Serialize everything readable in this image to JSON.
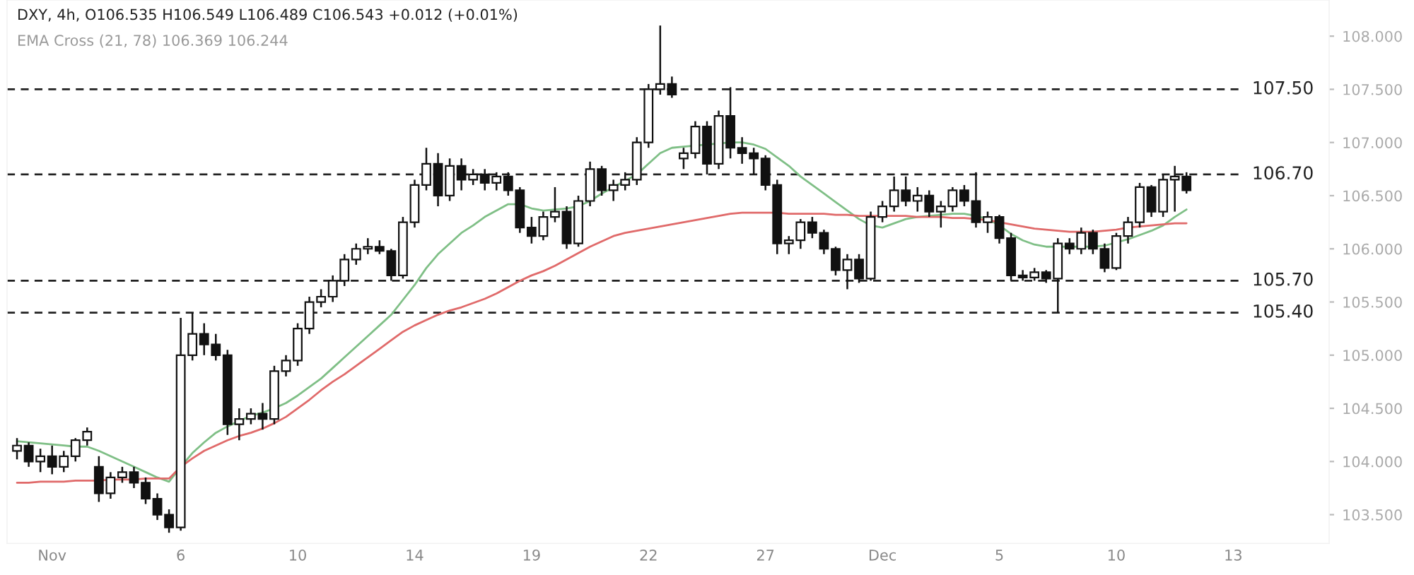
{
  "chart_data": {
    "type": "candlestick",
    "annotations": [
      "DXY, 4h, O106.535 H106.549 L106.489 C106.543 +0.012 (+0.01%)",
      "EMA Cross (21, 78) 106.369 106.244"
    ],
    "categories": [
      null,
      null,
      null,
      "Nov",
      null,
      null,
      null,
      null,
      null,
      null,
      null,
      null,
      null,
      null,
      "6",
      null,
      null,
      null,
      null,
      null,
      null,
      null,
      null,
      null,
      "10",
      null,
      null,
      null,
      null,
      null,
      null,
      null,
      null,
      null,
      "14",
      null,
      null,
      null,
      null,
      null,
      null,
      null,
      null,
      null,
      "19",
      null,
      null,
      null,
      null,
      null,
      null,
      null,
      null,
      null,
      "22",
      null,
      null,
      null,
      null,
      null,
      null,
      null,
      null,
      null,
      "27",
      null,
      null,
      null,
      null,
      null,
      null,
      null,
      null,
      null,
      "Dec",
      null,
      null,
      null,
      null,
      null,
      null,
      null,
      null,
      null,
      "5",
      null,
      null,
      null,
      null,
      null,
      null,
      null,
      null,
      null,
      "10",
      null,
      null,
      null,
      null,
      null,
      null,
      null,
      null,
      null,
      "13"
    ],
    "ohlc": [
      [
        104.1,
        104.22,
        104.02,
        104.15
      ],
      [
        104.15,
        104.18,
        103.95,
        104.0
      ],
      [
        104.0,
        104.12,
        103.9,
        104.05
      ],
      [
        104.05,
        104.15,
        103.88,
        103.95
      ],
      [
        103.95,
        104.1,
        103.9,
        104.05
      ],
      [
        104.05,
        104.22,
        104.0,
        104.2
      ],
      [
        104.2,
        104.32,
        104.15,
        104.28
      ],
      [
        103.95,
        104.05,
        103.62,
        103.7
      ],
      [
        103.7,
        103.9,
        103.65,
        103.85
      ],
      [
        103.85,
        103.95,
        103.8,
        103.9
      ],
      [
        103.9,
        103.95,
        103.75,
        103.8
      ],
      [
        103.8,
        103.85,
        103.6,
        103.65
      ],
      [
        103.65,
        103.7,
        103.45,
        103.5
      ],
      [
        103.5,
        103.55,
        103.33,
        103.38
      ],
      [
        103.38,
        105.35,
        103.35,
        105.0
      ],
      [
        105.0,
        105.4,
        104.95,
        105.2
      ],
      [
        105.2,
        105.3,
        105.0,
        105.1
      ],
      [
        105.1,
        105.2,
        104.95,
        105.0
      ],
      [
        105.0,
        105.05,
        104.25,
        104.35
      ],
      [
        104.35,
        104.5,
        104.2,
        104.4
      ],
      [
        104.4,
        104.5,
        104.35,
        104.45
      ],
      [
        104.45,
        104.55,
        104.3,
        104.4
      ],
      [
        104.4,
        104.9,
        104.35,
        104.85
      ],
      [
        104.85,
        105.0,
        104.8,
        104.95
      ],
      [
        104.95,
        105.3,
        104.9,
        105.25
      ],
      [
        105.25,
        105.55,
        105.2,
        105.5
      ],
      [
        105.5,
        105.62,
        105.45,
        105.55
      ],
      [
        105.55,
        105.75,
        105.5,
        105.7
      ],
      [
        105.7,
        105.95,
        105.65,
        105.9
      ],
      [
        105.9,
        106.05,
        105.85,
        106.0
      ],
      [
        106.0,
        106.1,
        105.95,
        106.02
      ],
      [
        106.02,
        106.08,
        105.95,
        105.98
      ],
      [
        105.98,
        106.0,
        105.7,
        105.75
      ],
      [
        105.75,
        106.3,
        105.72,
        106.25
      ],
      [
        106.25,
        106.65,
        106.2,
        106.6
      ],
      [
        106.6,
        106.95,
        106.55,
        106.8
      ],
      [
        106.8,
        106.9,
        106.4,
        106.5
      ],
      [
        106.5,
        106.85,
        106.45,
        106.78
      ],
      [
        106.78,
        106.85,
        106.55,
        106.65
      ],
      [
        106.65,
        106.75,
        106.6,
        106.7
      ],
      [
        106.7,
        106.75,
        106.55,
        106.62
      ],
      [
        106.62,
        106.72,
        106.55,
        106.68
      ],
      [
        106.68,
        106.72,
        106.5,
        106.55
      ],
      [
        106.55,
        106.58,
        106.15,
        106.2
      ],
      [
        106.2,
        106.3,
        106.05,
        106.12
      ],
      [
        106.12,
        106.35,
        106.08,
        106.3
      ],
      [
        106.3,
        106.58,
        106.25,
        106.35
      ],
      [
        106.35,
        106.4,
        106.0,
        106.05
      ],
      [
        106.05,
        106.5,
        106.02,
        106.45
      ],
      [
        106.45,
        106.82,
        106.4,
        106.75
      ],
      [
        106.75,
        106.78,
        106.5,
        106.55
      ],
      [
        106.55,
        106.65,
        106.45,
        106.6
      ],
      [
        106.6,
        106.72,
        106.55,
        106.65
      ],
      [
        106.65,
        107.05,
        106.6,
        107.0
      ],
      [
        107.0,
        107.55,
        106.95,
        107.5
      ],
      [
        107.5,
        108.1,
        107.45,
        107.55
      ],
      [
        107.55,
        107.62,
        107.42,
        107.45
      ],
      [
        106.85,
        106.95,
        106.75,
        106.9
      ],
      [
        106.9,
        107.2,
        106.85,
        107.15
      ],
      [
        107.15,
        107.2,
        106.7,
        106.8
      ],
      [
        106.8,
        107.3,
        106.75,
        107.25
      ],
      [
        107.25,
        107.52,
        106.85,
        106.95
      ],
      [
        106.95,
        107.05,
        106.8,
        106.9
      ],
      [
        106.9,
        106.95,
        106.7,
        106.85
      ],
      [
        106.85,
        106.88,
        106.55,
        106.6
      ],
      [
        106.6,
        106.65,
        105.95,
        106.05
      ],
      [
        106.05,
        106.12,
        105.95,
        106.08
      ],
      [
        106.08,
        106.28,
        106.0,
        106.25
      ],
      [
        106.25,
        106.3,
        106.1,
        106.15
      ],
      [
        106.15,
        106.18,
        105.95,
        106.0
      ],
      [
        106.0,
        106.02,
        105.75,
        105.8
      ],
      [
        105.8,
        105.95,
        105.62,
        105.9
      ],
      [
        105.9,
        105.95,
        105.68,
        105.72
      ],
      [
        105.72,
        106.35,
        105.7,
        106.3
      ],
      [
        106.3,
        106.45,
        106.25,
        106.4
      ],
      [
        106.4,
        106.68,
        106.35,
        106.55
      ],
      [
        106.55,
        106.68,
        106.4,
        106.45
      ],
      [
        106.45,
        106.58,
        106.35,
        106.5
      ],
      [
        106.5,
        106.55,
        106.3,
        106.35
      ],
      [
        106.35,
        106.45,
        106.2,
        106.4
      ],
      [
        106.4,
        106.58,
        106.35,
        106.55
      ],
      [
        106.55,
        106.6,
        106.4,
        106.45
      ],
      [
        106.45,
        106.72,
        106.2,
        106.25
      ],
      [
        106.25,
        106.35,
        106.15,
        106.3
      ],
      [
        106.3,
        106.32,
        106.05,
        106.1
      ],
      [
        106.1,
        106.15,
        105.7,
        105.75
      ],
      [
        105.75,
        105.8,
        105.7,
        105.73
      ],
      [
        105.73,
        105.82,
        105.7,
        105.78
      ],
      [
        105.78,
        105.8,
        105.68,
        105.72
      ],
      [
        105.72,
        106.1,
        105.4,
        106.05
      ],
      [
        106.05,
        106.1,
        105.95,
        106.0
      ],
      [
        106.0,
        106.2,
        105.95,
        106.15
      ],
      [
        106.15,
        106.18,
        105.95,
        106.0
      ],
      [
        106.0,
        106.05,
        105.78,
        105.82
      ],
      [
        105.82,
        106.15,
        105.8,
        106.12
      ],
      [
        106.12,
        106.3,
        106.05,
        106.25
      ],
      [
        106.25,
        106.62,
        106.2,
        106.58
      ],
      [
        106.58,
        106.6,
        106.3,
        106.35
      ],
      [
        106.35,
        106.7,
        106.3,
        106.65
      ],
      [
        106.65,
        106.78,
        106.35,
        106.68
      ],
      [
        106.68,
        106.72,
        106.52,
        106.55
      ],
      null,
      null,
      null,
      null
    ],
    "series": [
      {
        "type": "line",
        "color": "#7fbf86",
        "values": [
          104.19,
          104.18,
          104.17,
          104.16,
          104.15,
          104.14,
          104.14,
          104.1,
          104.05,
          104.0,
          103.95,
          103.9,
          103.85,
          103.81,
          103.95,
          104.08,
          104.18,
          104.27,
          104.33,
          104.38,
          104.43,
          104.46,
          104.5,
          104.55,
          104.62,
          104.7,
          104.78,
          104.88,
          104.98,
          105.08,
          105.18,
          105.28,
          105.38,
          105.52,
          105.66,
          105.82,
          105.95,
          106.05,
          106.15,
          106.22,
          106.3,
          106.36,
          106.42,
          106.42,
          106.38,
          106.36,
          106.37,
          106.38,
          106.4,
          106.45,
          106.52,
          106.58,
          106.64,
          106.7,
          106.8,
          106.9,
          106.95,
          106.96,
          106.97,
          106.98,
          106.99,
          107.0,
          107.0,
          106.98,
          106.94,
          106.86,
          106.78,
          106.68,
          106.6,
          106.52,
          106.44,
          106.36,
          106.28,
          106.22,
          106.2,
          106.24,
          106.28,
          106.3,
          106.31,
          106.32,
          106.33,
          106.33,
          106.31,
          106.28,
          106.22,
          106.14,
          106.08,
          106.04,
          106.02,
          106.02,
          106.02,
          106.02,
          106.02,
          106.03,
          106.06,
          106.09,
          106.13,
          106.17,
          106.22,
          106.3,
          106.37,
          null,
          null,
          null,
          null
        ]
      },
      {
        "type": "line",
        "color": "#e06a6a",
        "values": [
          103.8,
          103.8,
          103.81,
          103.81,
          103.81,
          103.82,
          103.82,
          103.82,
          103.83,
          103.83,
          103.83,
          103.84,
          103.84,
          103.84,
          103.95,
          104.03,
          104.1,
          104.15,
          104.2,
          104.24,
          104.27,
          104.31,
          104.36,
          104.42,
          104.5,
          104.58,
          104.67,
          104.75,
          104.82,
          104.9,
          104.98,
          105.06,
          105.14,
          105.22,
          105.28,
          105.33,
          105.38,
          105.42,
          105.45,
          105.49,
          105.53,
          105.58,
          105.64,
          105.7,
          105.75,
          105.79,
          105.84,
          105.9,
          105.96,
          106.02,
          106.07,
          106.12,
          106.15,
          106.17,
          106.19,
          106.21,
          106.23,
          106.25,
          106.27,
          106.29,
          106.31,
          106.33,
          106.34,
          106.34,
          106.34,
          106.34,
          106.33,
          106.33,
          106.33,
          106.33,
          106.32,
          106.32,
          106.31,
          106.31,
          106.31,
          106.31,
          106.31,
          106.3,
          106.3,
          106.3,
          106.29,
          106.29,
          106.28,
          106.27,
          106.25,
          106.23,
          106.21,
          106.19,
          106.18,
          106.17,
          106.16,
          106.16,
          106.16,
          106.17,
          106.18,
          106.2,
          106.21,
          106.22,
          106.23,
          106.24,
          106.24,
          null,
          null,
          null,
          null
        ]
      }
    ],
    "ylim": [
      103.23,
      108.34
    ],
    "yticks": [
      {
        "value": 103.5,
        "label": "103.500"
      },
      {
        "value": 104,
        "label": "104.000"
      },
      {
        "value": 104.5,
        "label": "104.500"
      },
      {
        "value": 105,
        "label": "105.000"
      },
      {
        "value": 105.5,
        "label": "105.500"
      },
      {
        "value": 106,
        "label": "106.000"
      },
      {
        "value": 106.5,
        "label": "106.500"
      },
      {
        "value": 107,
        "label": "107.000"
      },
      {
        "value": 107.5,
        "label": "107.500"
      },
      {
        "value": 108,
        "label": "108.000"
      }
    ],
    "ref_lines": [
      {
        "axis": "y",
        "value": 107.5,
        "label": "107.50",
        "color": "#222222",
        "line_style": "dashed"
      },
      {
        "axis": "y",
        "value": 106.7,
        "label": "106.70",
        "color": "#222222",
        "line_style": "dashed"
      },
      {
        "axis": "y",
        "value": 105.7,
        "label": "105.70",
        "color": "#222222",
        "line_style": "dashed"
      },
      {
        "axis": "y",
        "value": 105.4,
        "label": "105.40",
        "color": "#222222",
        "line_style": "dashed"
      }
    ]
  }
}
